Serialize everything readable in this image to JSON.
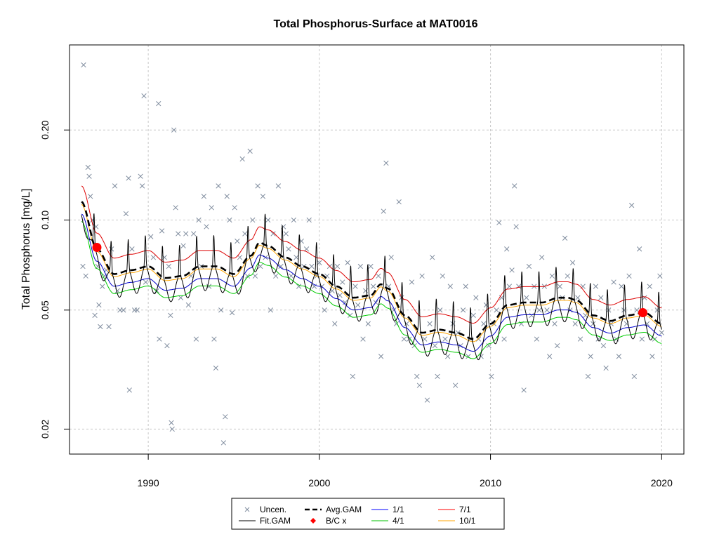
{
  "chart_data": {
    "type": "line",
    "title": "Total Phosphorus-Surface at MAT0016",
    "xlabel": "",
    "ylabel": "Total Phosphorus [mg/L]",
    "xlim": [
      1985.4,
      2021.3
    ],
    "ylim": [
      0.0165,
      0.385
    ],
    "y_scale": "log",
    "grid": true,
    "x_ticks": [
      {
        "value": 1990,
        "label": "1990"
      },
      {
        "value": 2000,
        "label": "2000"
      },
      {
        "value": 2010,
        "label": "2010"
      },
      {
        "value": 2020,
        "label": "2020"
      }
    ],
    "y_ticks": [
      {
        "value": 0.02,
        "label": "0.02"
      },
      {
        "value": 0.05,
        "label": "0.05"
      },
      {
        "value": 0.1,
        "label": "0.10"
      },
      {
        "value": 0.2,
        "label": "0.20"
      }
    ],
    "legend": {
      "position": "bottom",
      "entries": [
        {
          "label": "Uncen.",
          "symbol": "x",
          "color": "#7f8c9e"
        },
        {
          "label": "Avg.GAM",
          "symbol": "dashed-line",
          "color": "#000000"
        },
        {
          "label": "1/1",
          "symbol": "line",
          "color": "#0000ff"
        },
        {
          "label": "7/1",
          "symbol": "line",
          "color": "#ff0000"
        },
        {
          "label": "Fit.GAM",
          "symbol": "line",
          "color": "#000000"
        },
        {
          "label": "B/C x",
          "symbol": "point",
          "color": "#ff0000"
        },
        {
          "label": "4/1",
          "symbol": "line",
          "color": "#00c000"
        },
        {
          "label": "10/1",
          "symbol": "line",
          "color": "#ffa500"
        }
      ]
    },
    "colors": {
      "observations": "#7f8c9e",
      "avg_gam": "#000000",
      "fit_gam": "#000000",
      "jan1": "#0000cc",
      "apr1": "#00cc00",
      "jul1": "#dd0000",
      "oct1": "#ffa500",
      "bc_points": "#ff0000",
      "grid": "#c8c8c8"
    },
    "avg_gam": {
      "x": [
        1986.1,
        1987.0,
        1988.0,
        1989.0,
        1990.0,
        1991.0,
        1992.0,
        1993.0,
        1994.0,
        1995.0,
        1996.0,
        1996.5,
        1997.0,
        1998.0,
        1999.0,
        2000.0,
        2001.0,
        2002.0,
        2003.0,
        2003.6,
        2004.0,
        2005.0,
        2006.0,
        2007.0,
        2008.0,
        2009.0,
        2010.0,
        2011.0,
        2012.0,
        2013.0,
        2014.0,
        2014.5,
        2015.0,
        2016.0,
        2017.0,
        2018.0,
        2019.0,
        2020.0
      ],
      "y": [
        0.115,
        0.08,
        0.066,
        0.068,
        0.07,
        0.064,
        0.065,
        0.07,
        0.07,
        0.066,
        0.076,
        0.084,
        0.082,
        0.075,
        0.07,
        0.066,
        0.06,
        0.055,
        0.056,
        0.061,
        0.059,
        0.048,
        0.042,
        0.043,
        0.042,
        0.04,
        0.045,
        0.052,
        0.053,
        0.053,
        0.055,
        0.055,
        0.054,
        0.048,
        0.046,
        0.048,
        0.049,
        0.045
      ]
    },
    "seasonal_offsets": {
      "1/1": 0.91,
      "4/1": 0.86,
      "7/1": 1.13,
      "10/1": 0.98
    },
    "fit_gam_seasonal_amplitude": {
      "peak": 1.27,
      "trough": 0.83,
      "peak_fraction_of_year": 0.83
    },
    "observations": [
      [
        1986.22,
        0.33
      ],
      [
        1986.18,
        0.07
      ],
      [
        1986.35,
        0.065
      ],
      [
        1986.48,
        0.15
      ],
      [
        1986.55,
        0.14
      ],
      [
        1986.62,
        0.12
      ],
      [
        1986.75,
        0.1
      ],
      [
        1986.88,
        0.048
      ],
      [
        1986.95,
        0.095
      ],
      [
        1987.05,
        0.07
      ],
      [
        1987.12,
        0.052
      ],
      [
        1987.2,
        0.044
      ],
      [
        1987.32,
        0.06
      ],
      [
        1987.45,
        0.065
      ],
      [
        1987.55,
        0.068
      ],
      [
        1987.7,
        0.044
      ],
      [
        1987.85,
        0.08
      ],
      [
        1988.05,
        0.13
      ],
      [
        1988.2,
        0.058
      ],
      [
        1988.35,
        0.05
      ],
      [
        1988.55,
        0.05
      ],
      [
        1988.7,
        0.105
      ],
      [
        1988.85,
        0.138
      ],
      [
        1988.9,
        0.027
      ],
      [
        1989.05,
        0.08
      ],
      [
        1989.2,
        0.05
      ],
      [
        1989.35,
        0.05
      ],
      [
        1989.55,
        0.14
      ],
      [
        1989.65,
        0.13
      ],
      [
        1989.75,
        0.26
      ],
      [
        1989.85,
        0.062
      ],
      [
        1990.15,
        0.088
      ],
      [
        1990.3,
        0.075
      ],
      [
        1990.5,
        0.058
      ],
      [
        1990.65,
        0.04
      ],
      [
        1990.8,
        0.092
      ],
      [
        1990.95,
        0.075
      ],
      [
        1990.6,
        0.245
      ],
      [
        1991.1,
        0.038
      ],
      [
        1991.2,
        0.07
      ],
      [
        1991.3,
        0.048
      ],
      [
        1991.35,
        0.021
      ],
      [
        1991.4,
        0.02
      ],
      [
        1991.5,
        0.2
      ],
      [
        1991.6,
        0.11
      ],
      [
        1991.75,
        0.09
      ],
      [
        1991.9,
        0.055
      ],
      [
        1992.05,
        0.082
      ],
      [
        1992.2,
        0.09
      ],
      [
        1992.35,
        0.052
      ],
      [
        1992.5,
        0.065
      ],
      [
        1992.65,
        0.09
      ],
      [
        1992.8,
        0.04
      ],
      [
        1992.95,
        0.1
      ],
      [
        1993.1,
        0.07
      ],
      [
        1993.25,
        0.12
      ],
      [
        1993.4,
        0.095
      ],
      [
        1993.55,
        0.06
      ],
      [
        1993.7,
        0.11
      ],
      [
        1993.85,
        0.04
      ],
      [
        1993.95,
        0.032
      ],
      [
        1994.1,
        0.13
      ],
      [
        1994.25,
        0.05
      ],
      [
        1994.4,
        0.018
      ],
      [
        1994.5,
        0.022
      ],
      [
        1994.6,
        0.12
      ],
      [
        1994.75,
        0.1
      ],
      [
        1994.9,
        0.049
      ],
      [
        1995.05,
        0.11
      ],
      [
        1995.2,
        0.085
      ],
      [
        1995.35,
        0.075
      ],
      [
        1995.5,
        0.16
      ],
      [
        1995.65,
        0.09
      ],
      [
        1995.8,
        0.065
      ],
      [
        1995.95,
        0.17
      ],
      [
        1996.1,
        0.1
      ],
      [
        1996.25,
        0.065
      ],
      [
        1996.4,
        0.13
      ],
      [
        1996.55,
        0.07
      ],
      [
        1996.7,
        0.12
      ],
      [
        1996.85,
        0.075
      ],
      [
        1997.0,
        0.1
      ],
      [
        1997.15,
        0.05
      ],
      [
        1997.3,
        0.09
      ],
      [
        1997.45,
        0.065
      ],
      [
        1997.6,
        0.13
      ],
      [
        1997.75,
        0.07
      ],
      [
        1997.9,
        0.095
      ],
      [
        1998.05,
        0.09
      ],
      [
        1998.2,
        0.08
      ],
      [
        1998.35,
        0.065
      ],
      [
        1998.5,
        0.1
      ],
      [
        1998.65,
        0.075
      ],
      [
        1998.8,
        0.06
      ],
      [
        1998.95,
        0.085
      ],
      [
        1999.1,
        0.07
      ],
      [
        1999.25,
        0.08
      ],
      [
        1999.4,
        0.1
      ],
      [
        1999.55,
        0.07
      ],
      [
        1999.7,
        0.06
      ],
      [
        1999.85,
        0.065
      ],
      [
        2000.0,
        0.072
      ],
      [
        2000.15,
        0.06
      ],
      [
        2000.3,
        0.05
      ],
      [
        2000.45,
        0.065
      ],
      [
        2000.6,
        0.07
      ],
      [
        2000.75,
        0.058
      ],
      [
        2000.9,
        0.045
      ],
      [
        2001.05,
        0.07
      ],
      [
        2001.2,
        0.056
      ],
      [
        2001.35,
        0.062
      ],
      [
        2001.5,
        0.053
      ],
      [
        2001.65,
        0.072
      ],
      [
        2001.8,
        0.048
      ],
      [
        2001.95,
        0.03
      ],
      [
        2002.1,
        0.06
      ],
      [
        2002.25,
        0.052
      ],
      [
        2002.4,
        0.07
      ],
      [
        2002.55,
        0.04
      ],
      [
        2002.7,
        0.058
      ],
      [
        2002.85,
        0.045
      ],
      [
        2003.0,
        0.07
      ],
      [
        2003.15,
        0.06
      ],
      [
        2003.3,
        0.053
      ],
      [
        2003.45,
        0.065
      ],
      [
        2003.6,
        0.035
      ],
      [
        2003.75,
        0.107
      ],
      [
        2003.9,
        0.155
      ],
      [
        2004.05,
        0.06
      ],
      [
        2004.2,
        0.075
      ],
      [
        2004.35,
        0.05
      ],
      [
        2004.5,
        0.045
      ],
      [
        2004.65,
        0.115
      ],
      [
        2004.8,
        0.055
      ],
      [
        2004.95,
        0.04
      ],
      [
        2005.1,
        0.045
      ],
      [
        2005.25,
        0.04
      ],
      [
        2005.4,
        0.062
      ],
      [
        2005.55,
        0.038
      ],
      [
        2005.7,
        0.03
      ],
      [
        2005.85,
        0.028
      ],
      [
        2006.0,
        0.065
      ],
      [
        2006.15,
        0.04
      ],
      [
        2006.3,
        0.025
      ],
      [
        2006.45,
        0.045
      ],
      [
        2006.6,
        0.075
      ],
      [
        2006.75,
        0.038
      ],
      [
        2006.9,
        0.03
      ],
      [
        2007.05,
        0.05
      ],
      [
        2007.2,
        0.065
      ],
      [
        2007.35,
        0.04
      ],
      [
        2007.5,
        0.035
      ],
      [
        2007.65,
        0.06
      ],
      [
        2007.8,
        0.045
      ],
      [
        2007.95,
        0.028
      ],
      [
        2008.1,
        0.042
      ],
      [
        2008.25,
        0.038
      ],
      [
        2008.4,
        0.05
      ],
      [
        2008.55,
        0.06
      ],
      [
        2008.7,
        0.035
      ],
      [
        2008.85,
        0.04
      ],
      [
        2009.0,
        0.048
      ],
      [
        2009.15,
        0.055
      ],
      [
        2009.3,
        0.04
      ],
      [
        2009.45,
        0.035
      ],
      [
        2009.6,
        0.045
      ],
      [
        2009.75,
        0.052
      ],
      [
        2009.9,
        0.038
      ],
      [
        2010.05,
        0.03
      ],
      [
        2010.2,
        0.045
      ],
      [
        2010.35,
        0.05
      ],
      [
        2010.5,
        0.098
      ],
      [
        2010.65,
        0.055
      ],
      [
        2010.8,
        0.04
      ],
      [
        2010.95,
        0.08
      ],
      [
        2011.1,
        0.06
      ],
      [
        2011.25,
        0.068
      ],
      [
        2011.4,
        0.13
      ],
      [
        2011.5,
        0.095
      ],
      [
        2011.65,
        0.06
      ],
      [
        2011.8,
        0.045
      ],
      [
        2011.95,
        0.027
      ],
      [
        2012.1,
        0.055
      ],
      [
        2012.25,
        0.07
      ],
      [
        2012.4,
        0.048
      ],
      [
        2012.55,
        0.06
      ],
      [
        2012.7,
        0.04
      ],
      [
        2012.85,
        0.05
      ],
      [
        2013.0,
        0.075
      ],
      [
        2013.15,
        0.06
      ],
      [
        2013.3,
        0.05
      ],
      [
        2013.45,
        0.035
      ],
      [
        2013.6,
        0.065
      ],
      [
        2013.75,
        0.045
      ],
      [
        2013.9,
        0.038
      ],
      [
        2014.05,
        0.06
      ],
      [
        2014.2,
        0.055
      ],
      [
        2014.35,
        0.087
      ],
      [
        2014.5,
        0.065
      ],
      [
        2014.65,
        0.05
      ],
      [
        2014.8,
        0.072
      ],
      [
        2014.95,
        0.045
      ],
      [
        2015.1,
        0.055
      ],
      [
        2015.25,
        0.04
      ],
      [
        2015.4,
        0.06
      ],
      [
        2015.55,
        0.048
      ],
      [
        2015.7,
        0.03
      ],
      [
        2015.85,
        0.035
      ],
      [
        2016.0,
        0.045
      ],
      [
        2016.15,
        0.06
      ],
      [
        2016.3,
        0.04
      ],
      [
        2016.45,
        0.055
      ],
      [
        2016.6,
        0.038
      ],
      [
        2016.75,
        0.032
      ],
      [
        2016.9,
        0.05
      ],
      [
        2017.05,
        0.045
      ],
      [
        2017.2,
        0.062
      ],
      [
        2017.35,
        0.04
      ],
      [
        2017.5,
        0.035
      ],
      [
        2017.65,
        0.06
      ],
      [
        2017.8,
        0.05
      ],
      [
        2017.95,
        0.045
      ],
      [
        2018.1,
        0.065
      ],
      [
        2018.25,
        0.112
      ],
      [
        2018.4,
        0.03
      ],
      [
        2018.55,
        0.05
      ],
      [
        2018.7,
        0.08
      ],
      [
        2018.85,
        0.04
      ],
      [
        2019.0,
        0.055
      ],
      [
        2019.15,
        0.045
      ],
      [
        2019.3,
        0.06
      ],
      [
        2019.45,
        0.035
      ],
      [
        2019.6,
        0.04
      ],
      [
        2019.75,
        0.05
      ],
      [
        2019.9,
        0.065
      ],
      [
        2020.0,
        0.042
      ]
    ],
    "bc_points": [
      [
        1987.0,
        0.081
      ],
      [
        2018.9,
        0.049
      ]
    ]
  }
}
